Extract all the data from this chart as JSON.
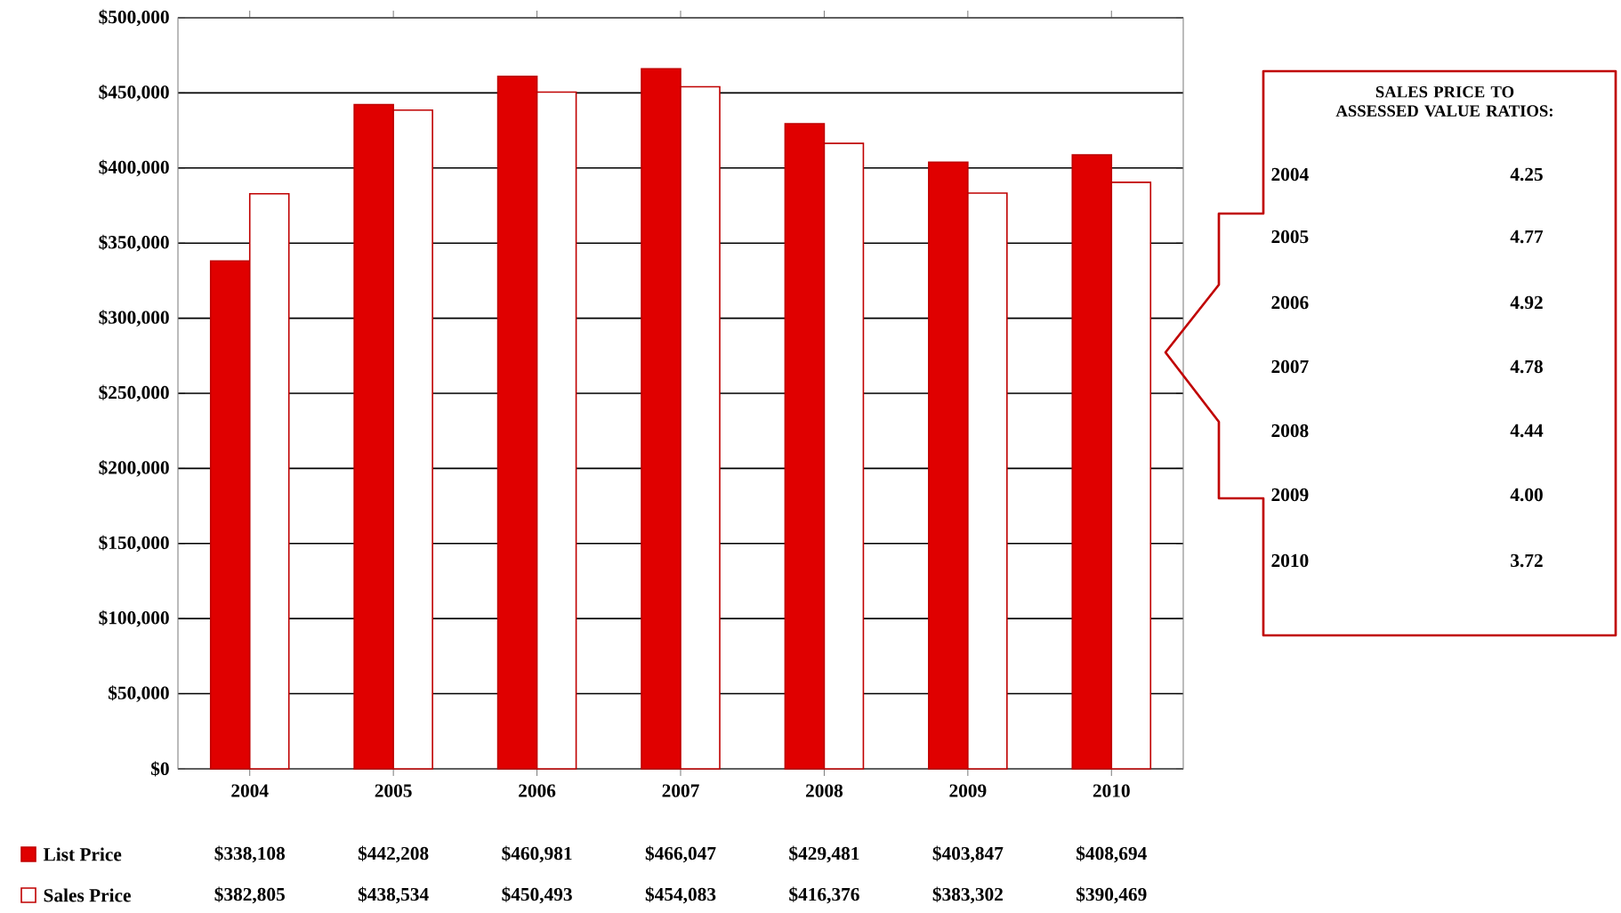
{
  "chart_data": {
    "type": "bar",
    "categories": [
      "2004",
      "2005",
      "2006",
      "2007",
      "2008",
      "2009",
      "2010"
    ],
    "series": [
      {
        "name": "List Price",
        "color": "#e00000",
        "values": [
          338108,
          442208,
          460981,
          466047,
          429481,
          403847,
          408694
        ],
        "value_labels": [
          "$338,108",
          "$442,208",
          "$460,981",
          "$466,047",
          "$429,481",
          "$403,847",
          "$408,694"
        ]
      },
      {
        "name": "Sales Price",
        "color": "#ffffff",
        "values": [
          382805,
          438534,
          450493,
          454083,
          416376,
          383302,
          390469
        ],
        "value_labels": [
          "$382,805",
          "$438,534",
          "$450,493",
          "$454,083",
          "$416,376",
          "$383,302",
          "$390,469"
        ]
      }
    ],
    "ylim": [
      0,
      500000
    ],
    "yticks": [
      {
        "value": 0,
        "label": "$0"
      },
      {
        "value": 50000,
        "label": "$50,000"
      },
      {
        "value": 100000,
        "label": "$100,000"
      },
      {
        "value": 150000,
        "label": "$150,000"
      },
      {
        "value": 200000,
        "label": "$200,000"
      },
      {
        "value": 250000,
        "label": "$250,000"
      },
      {
        "value": 300000,
        "label": "$300,000"
      },
      {
        "value": 350000,
        "label": "$350,000"
      },
      {
        "value": 400000,
        "label": "$400,000"
      },
      {
        "value": 450000,
        "label": "$450,000"
      },
      {
        "value": 500000,
        "label": "$500,000"
      }
    ],
    "grid": "y",
    "legend": "bottom",
    "annotations": [
      "SALES PRICE TO ASSESSED VALUE RATIOS:",
      "2004",
      "4.25",
      "2005",
      "4.77",
      "2006",
      "4.92",
      "2007",
      "4.78",
      "2008",
      "4.44",
      "2009",
      "4.00",
      "2010",
      "3.72"
    ]
  }
}
